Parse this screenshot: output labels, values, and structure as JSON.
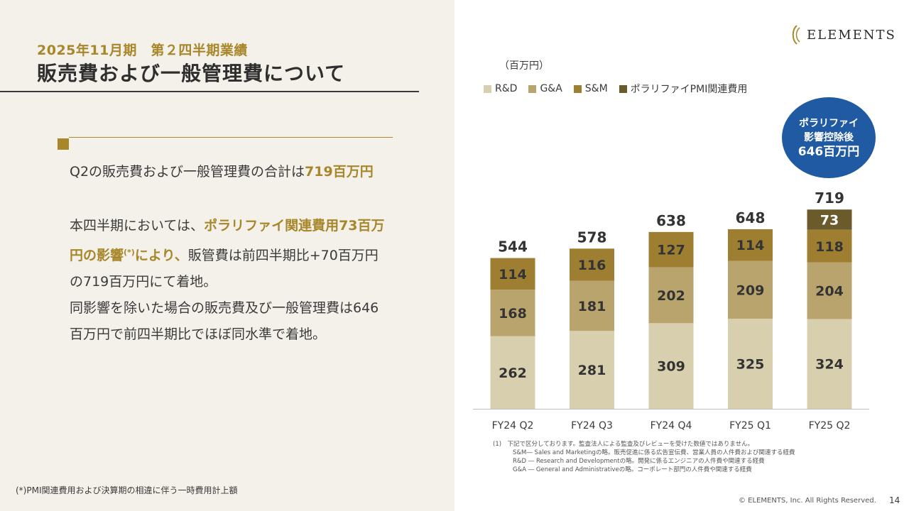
{
  "header": {
    "subtitle": "2025年11月期　第２四半期業績",
    "title": "販売費および一般管理費について"
  },
  "body": {
    "p1_text": "Q2の販売費および一般管理費の合計は",
    "p1_highlight": "719百万円",
    "p2_l1_text": "本四半期においては、",
    "p2_l1_highlight": "ポラリファイ関連費用73百万",
    "p2_l2_highlight": "円の影響",
    "p2_l2_sup": "(*)",
    "p2_l2_highlight2": "により、",
    "p2_l2_text": "販管費は前四半期比+70百万円",
    "p2_l3_text": "の719百万円にて着地。",
    "p3_l1_text": "同影響を除いた場合の販売費及び一般管理費は646",
    "p3_l2_text": "百万円で前四半期比でほぼ同水準で着地。"
  },
  "footnote_left": "(*)PMI関連費用および決算期の相違に伴う一時費用計上額",
  "logo": {
    "text": "ELEMENTS",
    "icon": "elements-logo-icon"
  },
  "badge": {
    "line1": "ポラリファイ",
    "line2": "影響控除後",
    "line3": "646百万円"
  },
  "notes": {
    "n1": "(1)　下記で区分しております。監査法人による監査及びレビューを受けた数値ではありません。",
    "n2": "S&M― Sales and Marketingの略。販売促進に係る広告宣伝費、営業人員の人件費および関連する経費",
    "n3": "R&D ― Research and Developmentの略。開発に係るエンジニアの人件費や関連する経費",
    "n4": "G&A ― General and Administrativeの略。コーポレート部門の人件費や関連する経費"
  },
  "copyright": "© ELEMENTS, Inc. All Rights Reserved.",
  "page_number": "14",
  "chart_data": {
    "type": "bar",
    "stacked": true,
    "unit_label": "（百万円）",
    "categories": [
      "FY24 Q2",
      "FY24 Q3",
      "FY24 Q4",
      "FY25 Q1",
      "FY25 Q2"
    ],
    "series": [
      {
        "name": "R&D",
        "color": "#d8cfae",
        "values": [
          262,
          281,
          309,
          325,
          324
        ]
      },
      {
        "name": "G&A",
        "color": "#b9a46d",
        "values": [
          168,
          181,
          202,
          209,
          204
        ]
      },
      {
        "name": "S&M",
        "color": "#9e7f32",
        "values": [
          114,
          116,
          127,
          114,
          118
        ]
      },
      {
        "name": "ポラリファイPMI関連費用",
        "color": "#6b5a2a",
        "values": [
          0,
          0,
          0,
          0,
          73
        ]
      }
    ],
    "totals": [
      544,
      578,
      638,
      648,
      719
    ],
    "legend_position": "top-left",
    "grid": false
  }
}
